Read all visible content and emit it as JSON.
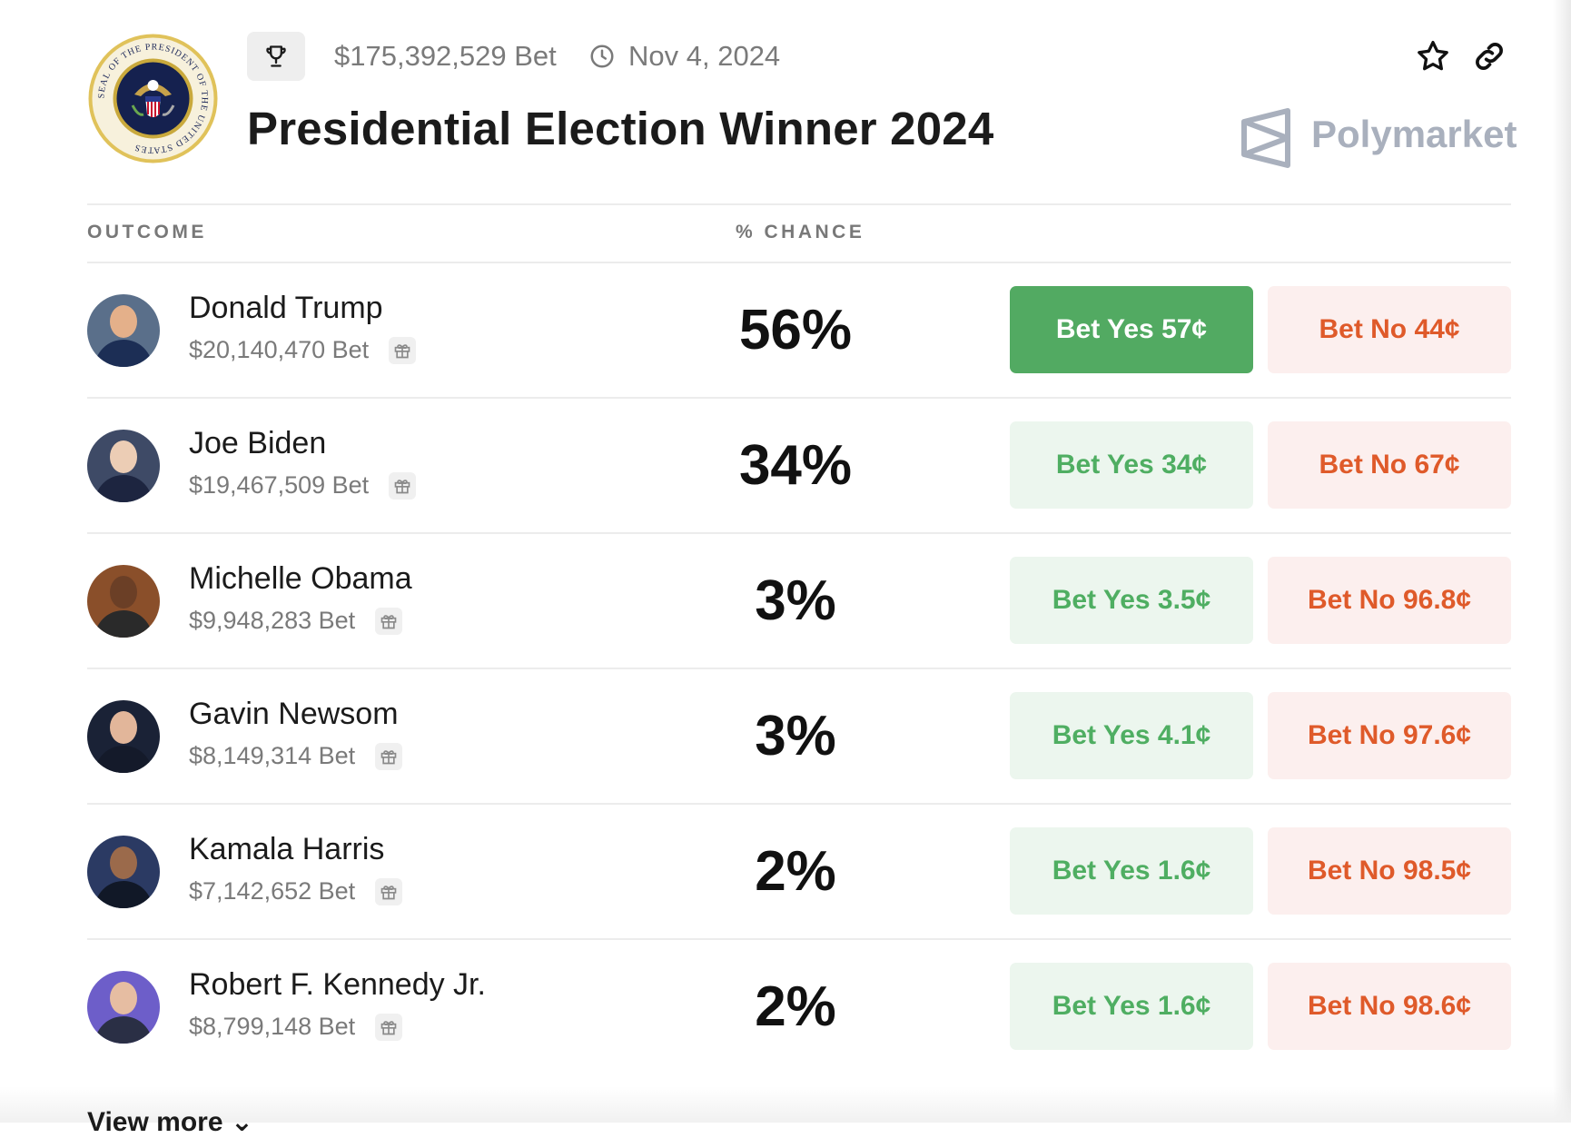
{
  "header": {
    "seal_text": "SEAL OF THE PRESIDENT OF THE UNITED STATES",
    "volume": "$175,392,529 Bet",
    "date": "Nov 4, 2024",
    "title": "Presidential Election Winner 2024",
    "brand": "Polymarket"
  },
  "table": {
    "col_outcome": "OUTCOME",
    "col_chance": "% CHANCE",
    "rows": [
      {
        "name": "Donald Trump",
        "volume": "$20,140,470 Bet",
        "chance": "56%",
        "yes_label": "Bet Yes 57¢",
        "no_label": "Bet No 44¢"
      },
      {
        "name": "Joe Biden",
        "volume": "$19,467,509 Bet",
        "chance": "34%",
        "yes_label": "Bet Yes 34¢",
        "no_label": "Bet No 67¢"
      },
      {
        "name": "Michelle Obama",
        "volume": "$9,948,283 Bet",
        "chance": "3%",
        "yes_label": "Bet Yes 3.5¢",
        "no_label": "Bet No 96.8¢"
      },
      {
        "name": "Gavin Newsom",
        "volume": "$8,149,314 Bet",
        "chance": "3%",
        "yes_label": "Bet Yes 4.1¢",
        "no_label": "Bet No 97.6¢"
      },
      {
        "name": "Kamala Harris",
        "volume": "$7,142,652 Bet",
        "chance": "2%",
        "yes_label": "Bet Yes 1.6¢",
        "no_label": "Bet No 98.5¢"
      },
      {
        "name": "Robert F. Kennedy Jr.",
        "volume": "$8,799,148 Bet",
        "chance": "2%",
        "yes_label": "Bet Yes 1.6¢",
        "no_label": "Bet No 98.6¢"
      }
    ]
  },
  "footer": {
    "view_more": "View more ⌄"
  },
  "colors": {
    "yes": "#52aa62",
    "no": "#df5a2a",
    "brand": "#a9b0bd"
  },
  "icons": [
    "presidential-seal",
    "trophy-icon",
    "clock-icon",
    "star-icon",
    "link-icon",
    "polymarket-logo",
    "gift-icon"
  ]
}
